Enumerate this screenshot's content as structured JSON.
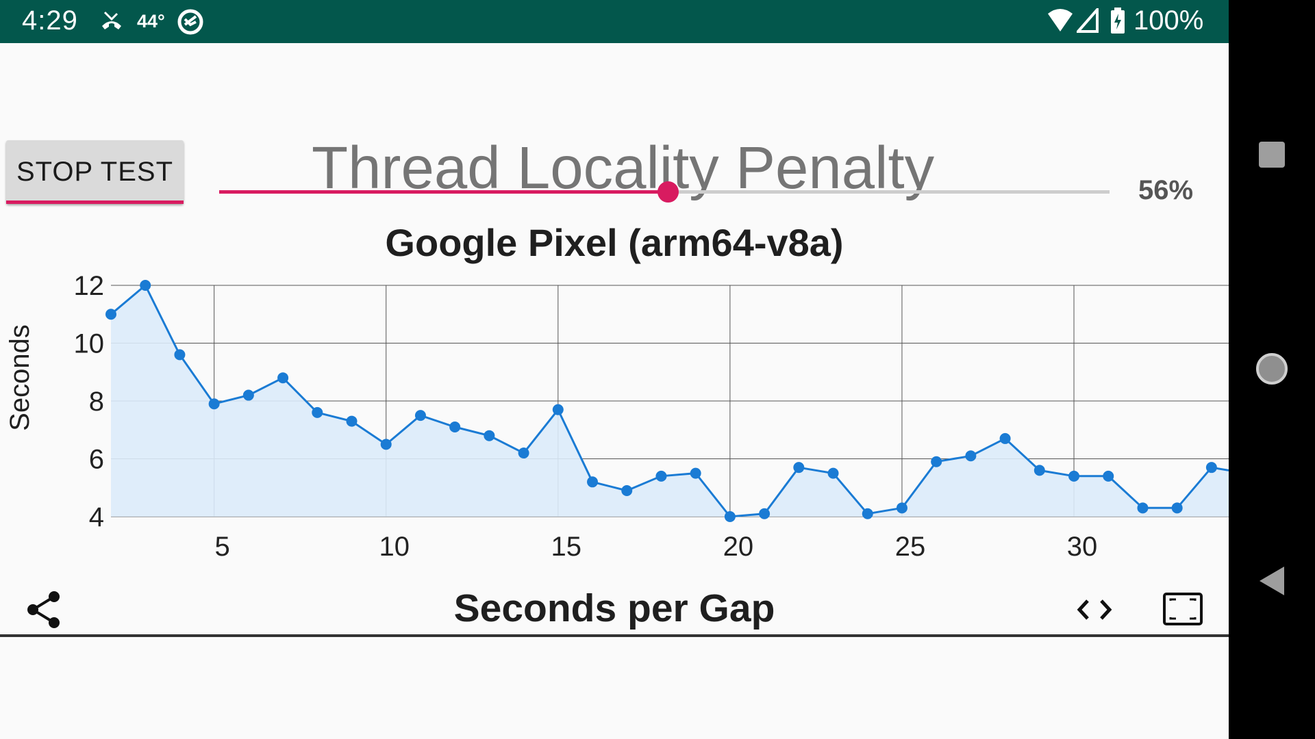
{
  "status_bar": {
    "time": "4:29",
    "temperature": "44°",
    "battery_text": "100%",
    "icons": [
      "missed-call-icon",
      "weather-temp-icon",
      "data-saver-icon",
      "wifi-icon",
      "cell-signal-icon",
      "battery-charging-icon"
    ]
  },
  "controls": {
    "stop_button_label": "STOP TEST",
    "test_title": "Thread Locality Penalty",
    "slider_value": 56,
    "slider_value_label": "56%"
  },
  "nav_bar": {
    "icons": [
      "recents-icon",
      "home-icon",
      "back-icon"
    ]
  },
  "toolbar": {
    "icons": [
      "share-icon",
      "code-icon",
      "fit-screen-icon"
    ]
  },
  "colors": {
    "status_bar": "#03574c",
    "accent": "#d81b60",
    "line": "#1a7bd4",
    "area_fill": "#dcebfa"
  },
  "chart_data": {
    "type": "area",
    "title": "Google Pixel (arm64-v8a)",
    "xlabel": "Seconds per Gap",
    "ylabel": "Seconds",
    "xlim": [
      2,
      34.5
    ],
    "ylim": [
      4,
      12
    ],
    "x_ticks": [
      5,
      10,
      15,
      20,
      25,
      30
    ],
    "y_ticks": [
      4,
      6,
      8,
      10,
      12
    ],
    "grid": true,
    "series": [
      {
        "x": [
          2,
          3,
          4,
          5,
          6,
          7,
          8,
          9,
          10,
          11,
          12,
          13,
          14,
          15,
          16,
          17,
          18,
          19,
          20,
          21,
          22,
          23,
          24,
          25,
          26,
          27,
          28,
          29,
          30,
          31,
          32,
          33,
          34,
          34.5
        ],
        "values": [
          11.0,
          12.0,
          9.6,
          7.9,
          8.2,
          8.8,
          7.6,
          7.3,
          6.5,
          7.5,
          7.1,
          6.8,
          6.2,
          7.7,
          5.2,
          4.9,
          5.4,
          5.5,
          4.0,
          4.1,
          5.7,
          5.5,
          4.1,
          4.3,
          5.9,
          6.1,
          6.7,
          5.6,
          5.4,
          5.4,
          4.3,
          4.3,
          5.7,
          5.6
        ]
      }
    ]
  }
}
